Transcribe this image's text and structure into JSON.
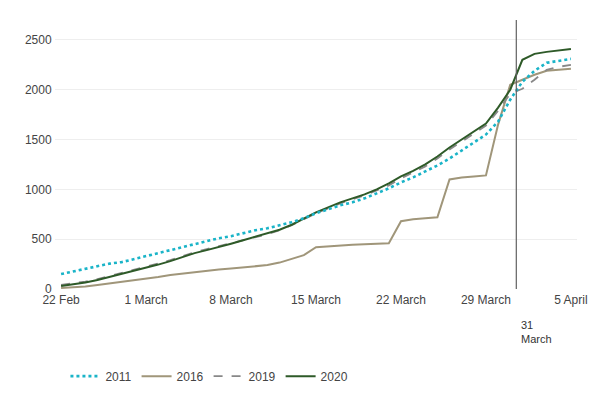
{
  "chart_data": {
    "type": "line",
    "x": [
      0,
      1,
      2,
      3,
      4,
      5,
      6,
      7,
      8,
      9,
      10,
      11,
      12,
      13,
      14,
      15,
      16,
      17,
      18,
      19,
      20,
      21,
      22,
      23,
      24,
      25,
      26,
      27,
      28,
      29,
      30,
      31,
      32,
      33,
      34,
      35,
      36,
      37,
      38,
      39,
      40,
      41,
      42
    ],
    "xlim": [
      -0.5,
      42.5
    ],
    "xticks": [
      {
        "value": 0,
        "label": "22 Feb"
      },
      {
        "value": 7,
        "label": "1 March"
      },
      {
        "value": 14,
        "label": "8 March"
      },
      {
        "value": 21,
        "label": "15 March"
      },
      {
        "value": 28,
        "label": "22 March"
      },
      {
        "value": 35,
        "label": "29 March"
      },
      {
        "value": 42,
        "label": "5 April"
      }
    ],
    "ylim": [
      0,
      2700
    ],
    "yticks": [
      0,
      500,
      1000,
      1500,
      2000,
      2500
    ],
    "grid": "y",
    "legend": "bottom",
    "annotations": [
      {
        "text": "31\nMarch",
        "x": 37.5
      }
    ],
    "series": [
      {
        "name": "2011",
        "color": "#1ab4c8",
        "line_style": "dotted",
        "values": [
          150,
          175,
          200,
          230,
          255,
          270,
          300,
          330,
          360,
          390,
          420,
          455,
          480,
          510,
          530,
          560,
          590,
          610,
          640,
          670,
          710,
          760,
          800,
          840,
          870,
          910,
          960,
          1010,
          1070,
          1120,
          1180,
          1240,
          1310,
          1390,
          1470,
          1550,
          1680,
          1900,
          2080,
          2190,
          2270,
          2290,
          2310
        ]
      },
      {
        "name": "2016",
        "color": "#a0967a",
        "line_style": "solid",
        "values": [
          10,
          15,
          25,
          40,
          55,
          70,
          85,
          100,
          120,
          140,
          155,
          170,
          185,
          195,
          205,
          215,
          225,
          240,
          265,
          300,
          340,
          420,
          430,
          440,
          445,
          450,
          455,
          460,
          680,
          700,
          710,
          720,
          1100,
          1120,
          1130,
          1140,
          1650,
          2050,
          2100,
          2150,
          2190,
          2200,
          2210
        ]
      },
      {
        "name": "2019",
        "color": "#888888",
        "line_style": "dashed",
        "values": [
          40,
          55,
          75,
          100,
          130,
          160,
          190,
          220,
          255,
          290,
          330,
          370,
          400,
          430,
          460,
          490,
          520,
          550,
          590,
          640,
          700,
          760,
          810,
          860,
          900,
          940,
          990,
          1040,
          1110,
          1170,
          1230,
          1310,
          1400,
          1480,
          1560,
          1640,
          1790,
          1960,
          2010,
          2100,
          2200,
          2230,
          2250
        ]
      },
      {
        "name": "2020",
        "color": "#2e5a28",
        "line_style": "solid",
        "values": [
          30,
          45,
          65,
          90,
          120,
          150,
          180,
          210,
          245,
          280,
          320,
          360,
          390,
          420,
          455,
          490,
          525,
          555,
          595,
          645,
          705,
          770,
          820,
          870,
          910,
          950,
          1000,
          1060,
          1130,
          1185,
          1250,
          1330,
          1420,
          1500,
          1580,
          1660,
          1820,
          2000,
          2300,
          2360,
          2380,
          2395,
          2410
        ]
      }
    ]
  }
}
